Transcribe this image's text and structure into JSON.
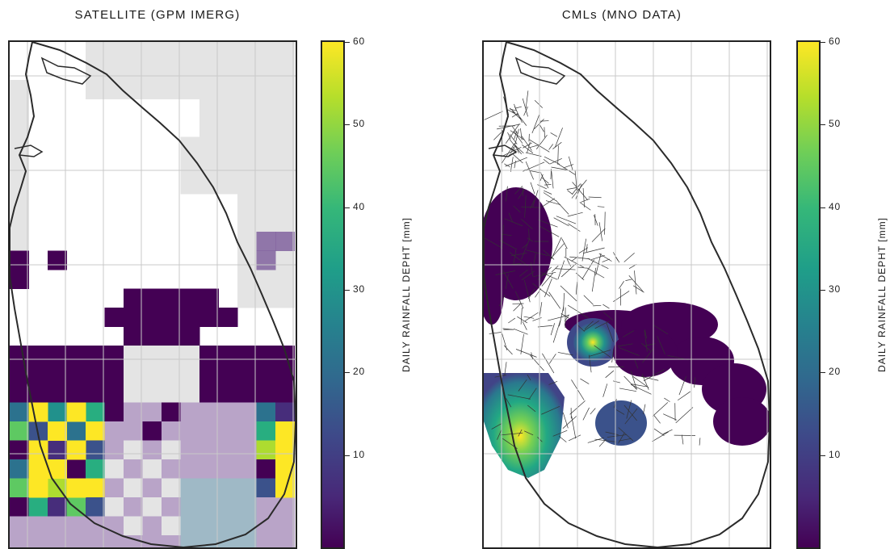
{
  "panels": [
    {
      "title": "SATELLITE (GPM IMERG)",
      "colorbar": {
        "label": "DAILY RAINFALL DEPHT [mm]",
        "ticks": [
          10,
          20,
          30,
          40,
          50,
          60
        ],
        "range": [
          0,
          60
        ],
        "colormap": "viridis"
      }
    },
    {
      "title": "CMLs (MNO DATA)",
      "colorbar": {
        "label": "DAILY RAINFALL DEPHT [mm]",
        "ticks": [
          10,
          20,
          30,
          40,
          50,
          60
        ],
        "range": [
          0,
          60
        ],
        "colormap": "viridis"
      }
    }
  ],
  "colors": {
    "viridis_low": "#440154",
    "viridis_mid": "#21918c",
    "viridis_high": "#fde725",
    "no_data_gray": "#e4e4e4",
    "coastline": "#2a2a2a",
    "gridline": "#c9c9c9"
  }
}
